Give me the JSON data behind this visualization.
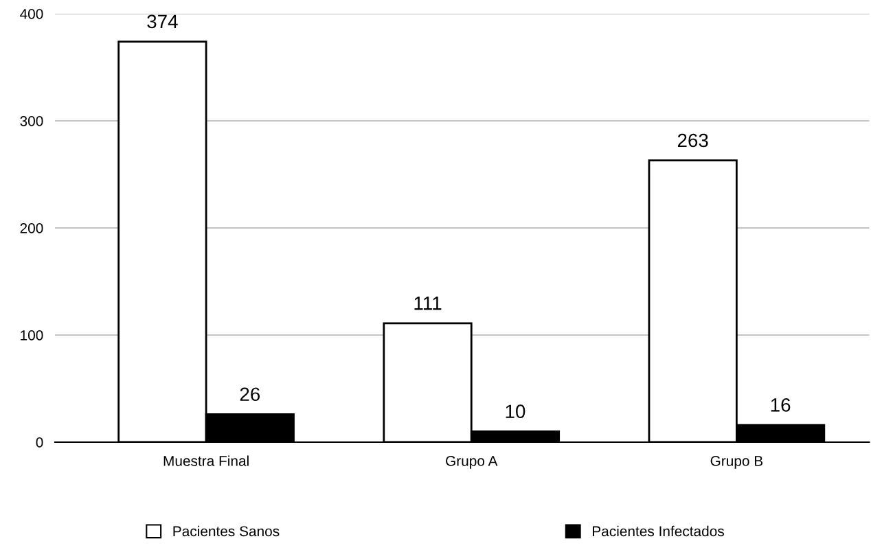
{
  "chart_data": {
    "type": "bar",
    "categories": [
      "Muestra Final",
      "Grupo A",
      "Grupo B"
    ],
    "series": [
      {
        "name": "Pacientes Sanos",
        "color": "#ffffff",
        "values": [
          374,
          111,
          263
        ]
      },
      {
        "name": "Pacientes Infectados",
        "color": "#000000",
        "values": [
          26,
          10,
          16
        ]
      }
    ],
    "ylim": [
      0,
      400
    ],
    "yticks": [
      0,
      100,
      200,
      300,
      400
    ],
    "grid": "y",
    "legend": "bottom",
    "data_labels": true
  }
}
